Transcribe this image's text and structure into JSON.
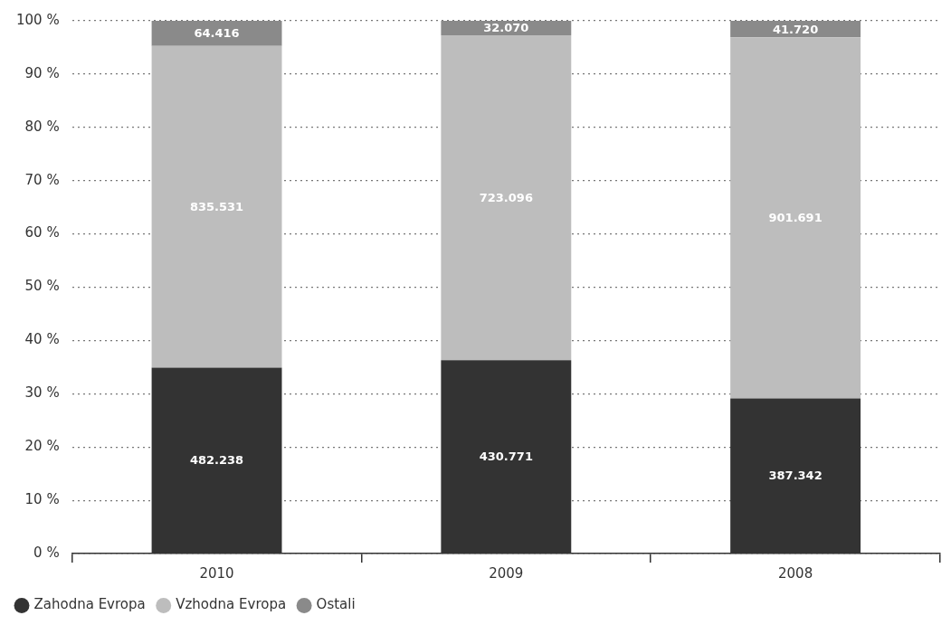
{
  "chart_data": {
    "type": "bar",
    "stacked": true,
    "categories": [
      "2010",
      "2009",
      "2008"
    ],
    "series": [
      {
        "name": "Zahodna Evropa",
        "color": "#333333",
        "values": [
          34.9,
          36.3,
          29.1
        ]
      },
      {
        "name": "Vzhodna Evropa",
        "color": "#bdbdbd",
        "values": [
          60.4,
          61.0,
          67.8
        ]
      },
      {
        "name": "Ostali",
        "color": "#8a8a8a",
        "values": [
          4.7,
          2.7,
          3.1
        ]
      }
    ],
    "annotations": [
      "482.238",
      "430.771",
      "387.342",
      "835.531",
      "723.096",
      "901.691",
      "64.416",
      "32.070",
      "41.720"
    ],
    "ylim": [
      0,
      100
    ],
    "yticks": [
      {
        "value": 0,
        "label": "0 %"
      },
      {
        "value": 10,
        "label": "10 %"
      },
      {
        "value": 20,
        "label": "20 %"
      },
      {
        "value": 30,
        "label": "30 %"
      },
      {
        "value": 40,
        "label": "40 %"
      },
      {
        "value": 50,
        "label": "50 %"
      },
      {
        "value": 60,
        "label": "60 %"
      },
      {
        "value": 70,
        "label": "70 %"
      },
      {
        "value": 80,
        "label": "80 %"
      },
      {
        "value": 90,
        "label": "90 %"
      },
      {
        "value": 100,
        "label": "100 %"
      }
    ],
    "grid": "y",
    "legend": "bottom left"
  }
}
